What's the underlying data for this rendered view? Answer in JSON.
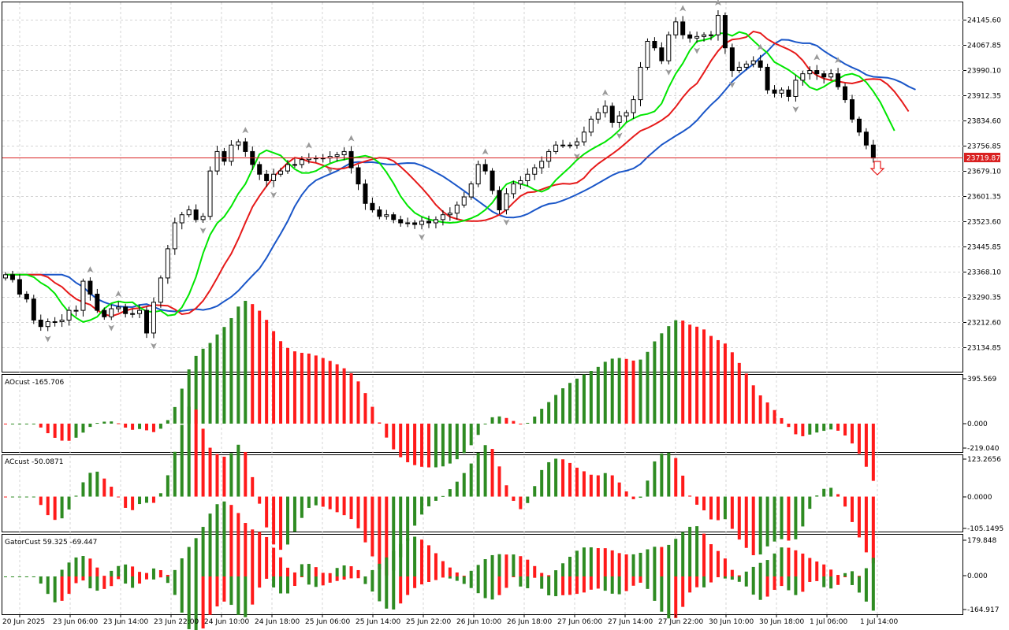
{
  "colors": {
    "up": "#2e8b22",
    "down": "#ff1a1a",
    "lips": "#00e600",
    "teeth": "#e61a1a",
    "jaw": "#1a56c8",
    "grid": "#d4d4d4",
    "price_line": "#d92020",
    "price_tag_bg": "#d92020",
    "fractal": "#9a9a9a",
    "arrow": "#e61a1a"
  },
  "main": {
    "current_price": 23719.87,
    "current_price_label": "23719.87",
    "y_labels": [
      "24145.60",
      "24067.85",
      "23990.10",
      "23912.35",
      "23834.60",
      "23756.85",
      "23679.10",
      "23601.35",
      "23523.60",
      "23445.85",
      "23368.10",
      "23290.35",
      "23212.60",
      "23134.85"
    ]
  },
  "panels": {
    "ao": {
      "label": "AOcust -165.706",
      "y_labels": [
        "395.569",
        "0.000",
        "-219.040"
      ]
    },
    "ac": {
      "label": "ACcust -50.0871",
      "y_labels": [
        "123.2656",
        "0.0000",
        "-105.1495"
      ]
    },
    "gator": {
      "label": "GatorCust 59.325 -69.447",
      "y_labels": [
        "179.848",
        "0.000",
        "-164.917"
      ]
    }
  },
  "x_labels": [
    "20 Jun 2025",
    "23 Jun 06:00",
    "23 Jun 14:00",
    "23 Jun 22:00",
    "24 Jun 10:00",
    "24 Jun 18:00",
    "25 Jun 06:00",
    "25 Jun 14:00",
    "25 Jun 22:00",
    "26 Jun 10:00",
    "26 Jun 18:00",
    "27 Jun 06:00",
    "27 Jun 14:00",
    "27 Jun 22:00",
    "30 Jun 10:00",
    "30 Jun 18:00",
    "1 Jul 06:00",
    "1 Jul 14:00"
  ],
  "chart_data": {
    "type": "candlestick",
    "instrument_note": "",
    "ohlc_close": [
      23360,
      23345,
      23300,
      23285,
      23220,
      23200,
      23215,
      23215,
      23220,
      23250,
      23250,
      23340,
      23300,
      23250,
      23230,
      23255,
      23260,
      23240,
      23240,
      23250,
      23180,
      23275,
      23350,
      23440,
      23520,
      23545,
      23560,
      23530,
      23540,
      23680,
      23740,
      23710,
      23760,
      23770,
      23740,
      23700,
      23670,
      23650,
      23670,
      23680,
      23700,
      23700,
      23715,
      23720,
      23720,
      23720,
      23725,
      23730,
      23740,
      23690,
      23640,
      23580,
      23560,
      23540,
      23545,
      23530,
      23520,
      23520,
      23515,
      23525,
      23520,
      23530,
      23545,
      23550,
      23575,
      23600,
      23640,
      23700,
      23680,
      23620,
      23560,
      23610,
      23640,
      23650,
      23670,
      23690,
      23710,
      23740,
      23760,
      23760,
      23760,
      23770,
      23800,
      23840,
      23860,
      23880,
      23830,
      23850,
      23860,
      23900,
      24000,
      24080,
      24060,
      24020,
      24100,
      24140,
      24100,
      24090,
      24095,
      24100,
      24100,
      24160,
      24060,
      23990,
      24000,
      24010,
      24020,
      24000,
      23930,
      23920,
      23930,
      23910,
      23960,
      23980,
      23990,
      23980,
      23970,
      23980,
      23940,
      23900,
      23840,
      23800,
      23760,
      23720
    ]
  }
}
